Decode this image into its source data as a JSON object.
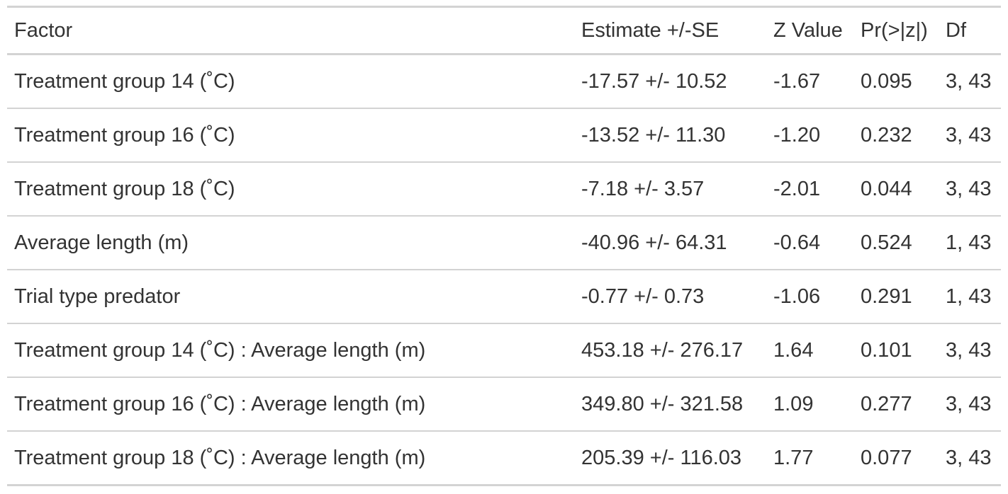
{
  "table": {
    "headers": [
      "Factor",
      "Estimate +/-SE",
      "Z Value",
      "Pr(>|z|)",
      "Df"
    ],
    "rows": [
      [
        "Treatment group 14 (˚C)",
        "-17.57 +/- 10.52",
        "-1.67",
        "0.095",
        "3, 43"
      ],
      [
        "Treatment group 16 (˚C)",
        "-13.52 +/- 11.30",
        "-1.20",
        "0.232",
        "3, 43"
      ],
      [
        "Treatment group 18 (˚C)",
        "-7.18 +/- 3.57",
        "-2.01",
        "0.044",
        "3, 43"
      ],
      [
        "Average length (m)",
        "-40.96 +/- 64.31",
        "-0.64",
        "0.524",
        "1, 43"
      ],
      [
        "Trial type predator",
        "-0.77 +/- 0.73",
        "-1.06",
        "0.291",
        "1, 43"
      ],
      [
        "Treatment group 14 (˚C) : Average length (m)",
        "453.18 +/- 276.17",
        "1.64",
        "0.101",
        "3, 43"
      ],
      [
        "Treatment group 16 (˚C) : Average length (m)",
        "349.80 +/- 321.58",
        "1.09",
        "0.277",
        "3, 43"
      ],
      [
        "Treatment group 18 (˚C) : Average length (m)",
        "205.39 +/- 116.03",
        "1.77",
        "0.077",
        "3, 43"
      ]
    ]
  }
}
